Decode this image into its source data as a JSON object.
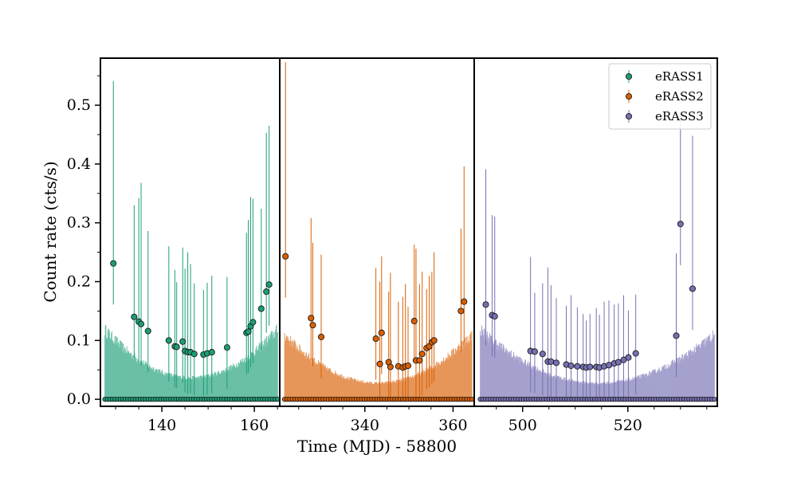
{
  "chart_data": {
    "type": "scatter",
    "xlabel": "Time (MJD) - 58800",
    "ylabel": "Count rate (cts/s)",
    "ylim": [
      -0.012,
      0.58
    ],
    "yticks": [
      0.0,
      0.1,
      0.2,
      0.3,
      0.4,
      0.5
    ],
    "legend": {
      "placement": "top-right"
    },
    "panels": [
      {
        "name": "eRASS1",
        "color": "#1b9e77",
        "xlim": [
          126.7,
          165.5
        ],
        "xticks": [
          140,
          160
        ],
        "detections": {
          "x": [
            129.5,
            134.0,
            135.0,
            135.5,
            137.0,
            141.5,
            142.8,
            143.2,
            144.5,
            145.0,
            145.6,
            146.2,
            147.0,
            149.0,
            149.8,
            150.8,
            154.1,
            158.3,
            158.7,
            159.2,
            159.7,
            161.5,
            162.6,
            163.2
          ],
          "y": [
            0.231,
            0.14,
            0.132,
            0.128,
            0.116,
            0.1,
            0.09,
            0.089,
            0.098,
            0.082,
            0.08,
            0.08,
            0.077,
            0.076,
            0.078,
            0.08,
            0.088,
            0.113,
            0.115,
            0.124,
            0.131,
            0.154,
            0.183,
            0.195
          ],
          "yerr_up": [
            0.31,
            0.19,
            0.21,
            0.24,
            0.17,
            0.16,
            0.13,
            0.11,
            0.16,
            0.14,
            0.17,
            0.15,
            0.12,
            0.11,
            0.12,
            0.13,
            0.12,
            0.17,
            0.19,
            0.22,
            0.21,
            0.17,
            0.27,
            0.27
          ]
        },
        "upper_band_start": 0.13,
        "upper_band_mid": 0.04,
        "upper_band_end": 0.13
      },
      {
        "name": "eRASS2",
        "color": "#d95f02",
        "xlim": [
          320.7,
          364.8
        ],
        "xticks": [
          340,
          360
        ],
        "detections": {
          "x": [
            322.0,
            327.8,
            328.2,
            330.1,
            342.5,
            343.4,
            343.8,
            345.4,
            345.8,
            347.6,
            348.6,
            349.2,
            349.8,
            351.2,
            351.6,
            352.4,
            353.0,
            354.0,
            354.6,
            355.2,
            355.7,
            361.8,
            362.5
          ],
          "y": [
            0.243,
            0.138,
            0.126,
            0.106,
            0.103,
            0.06,
            0.113,
            0.063,
            0.055,
            0.056,
            0.054,
            0.056,
            0.057,
            0.133,
            0.066,
            0.066,
            0.077,
            0.087,
            0.09,
            0.097,
            0.1,
            0.15,
            0.166
          ],
          "yerr_up": [
            0.33,
            0.17,
            0.14,
            0.14,
            0.12,
            0.14,
            0.13,
            0.12,
            0.16,
            0.11,
            0.12,
            0.14,
            0.1,
            0.13,
            0.19,
            0.13,
            0.14,
            0.1,
            0.12,
            0.12,
            0.15,
            0.14,
            0.23
          ]
        },
        "upper_band_start": 0.12,
        "upper_band_mid": 0.03,
        "upper_band_end": 0.12
      },
      {
        "name": "eRASS3",
        "color": "#7570b3",
        "xlim": [
          490.8,
          537.0
        ],
        "xticks": [
          500,
          520
        ],
        "detections": {
          "x": [
            493.0,
            494.2,
            494.7,
            501.5,
            502.3,
            503.8,
            504.8,
            505.4,
            506.4,
            508.3,
            509.2,
            510.4,
            511.5,
            512.1,
            512.8,
            514.0,
            514.6,
            515.5,
            516.4,
            517.4,
            518.2,
            519.2,
            520.1,
            521.5,
            529.2,
            530.0,
            532.3
          ],
          "y": [
            0.161,
            0.143,
            0.141,
            0.082,
            0.081,
            0.077,
            0.064,
            0.064,
            0.062,
            0.059,
            0.057,
            0.056,
            0.055,
            0.054,
            0.055,
            0.055,
            0.054,
            0.056,
            0.058,
            0.061,
            0.063,
            0.067,
            0.071,
            0.078,
            0.108,
            0.298,
            0.188
          ],
          "yerr_up": [
            0.23,
            0.17,
            0.17,
            0.16,
            0.1,
            0.12,
            0.16,
            0.13,
            0.11,
            0.1,
            0.12,
            0.1,
            0.09,
            0.08,
            0.09,
            0.1,
            0.09,
            0.11,
            0.11,
            0.1,
            0.1,
            0.11,
            0.08,
            0.1,
            0.14,
            0.19,
            0.26
          ]
        },
        "upper_band_start": 0.13,
        "upper_band_mid": 0.03,
        "upper_band_end": 0.12
      }
    ]
  }
}
